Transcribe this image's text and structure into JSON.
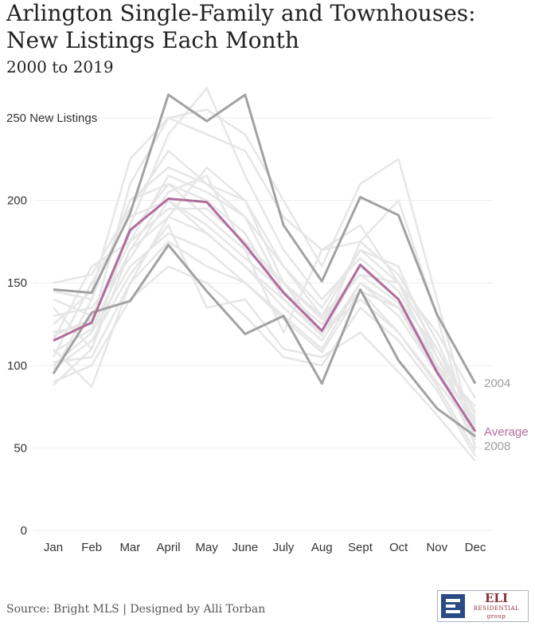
{
  "chart_data": {
    "type": "line",
    "title_line1": "Arlington Single-Family and Townhouses:",
    "title_line2": "New Listings Each Month",
    "subtitle": "2000 to 2019",
    "categories": [
      "Jan",
      "Feb",
      "Mar",
      "April",
      "May",
      "June",
      "July",
      "Aug",
      "Sept",
      "Oct",
      "Nov",
      "Dec"
    ],
    "y_ticks": [
      0,
      50,
      100,
      150,
      200,
      250
    ],
    "y_top_label": "250 New Listings",
    "ylim": [
      0,
      250
    ],
    "grid": true,
    "background_series": [
      [
        150,
        155,
        195,
        230,
        210,
        200,
        150,
        120,
        145,
        135,
        100,
        75
      ],
      [
        140,
        130,
        180,
        210,
        200,
        180,
        140,
        118,
        160,
        140,
        110,
        70
      ],
      [
        120,
        125,
        210,
        250,
        240,
        230,
        190,
        170,
        185,
        150,
        120,
        80
      ],
      [
        135,
        110,
        170,
        190,
        220,
        200,
        160,
        130,
        170,
        160,
        105,
        72
      ],
      [
        100,
        120,
        160,
        180,
        170,
        150,
        130,
        110,
        150,
        130,
        95,
        68
      ],
      [
        110,
        87,
        150,
        190,
        180,
        160,
        140,
        120,
        140,
        120,
        90,
        60
      ],
      [
        95,
        140,
        200,
        210,
        190,
        170,
        150,
        130,
        155,
        150,
        100,
        65
      ],
      [
        88,
        110,
        185,
        240,
        268,
        215,
        170,
        140,
        165,
        145,
        105,
        62
      ],
      [
        105,
        150,
        190,
        200,
        180,
        160,
        135,
        115,
        150,
        135,
        95,
        58
      ],
      [
        125,
        145,
        225,
        250,
        255,
        240,
        200,
        160,
        210,
        225,
        140,
        55
      ],
      [
        115,
        160,
        175,
        215,
        205,
        190,
        145,
        120,
        175,
        200,
        130,
        50
      ],
      [
        90,
        100,
        140,
        160,
        150,
        130,
        105,
        100,
        135,
        115,
        85,
        45
      ],
      [
        130,
        135,
        165,
        200,
        185,
        165,
        145,
        125,
        160,
        140,
        100,
        52
      ],
      [
        102,
        105,
        150,
        175,
        160,
        150,
        128,
        108,
        145,
        120,
        88,
        48
      ],
      [
        145,
        140,
        200,
        220,
        210,
        190,
        160,
        135,
        170,
        150,
        110,
        66
      ],
      [
        118,
        128,
        175,
        195,
        195,
        175,
        150,
        128,
        155,
        138,
        98,
        56
      ],
      [
        98,
        115,
        155,
        185,
        135,
        140,
        110,
        105,
        120,
        96,
        70,
        42
      ],
      [
        108,
        122,
        170,
        205,
        215,
        170,
        120,
        170,
        175,
        155,
        115,
        64
      ]
    ],
    "highlight_series": [
      {
        "name": "2004",
        "values": [
          146,
          144,
          192,
          264,
          248,
          264,
          185,
          151,
          202,
          191,
          131,
          89
        ],
        "color": "#a2a2a2"
      },
      {
        "name": "2008",
        "values": [
          95,
          132,
          139,
          173,
          145,
          119,
          130,
          89,
          146,
          103,
          74,
          57
        ],
        "color": "#a2a2a2"
      },
      {
        "name": "Average",
        "values": [
          115,
          126,
          182,
          201,
          199,
          173,
          144,
          121,
          161,
          140,
          96,
          60
        ],
        "color": "#b06d9c"
      }
    ],
    "series_label_colors": {
      "2004": "#9e9e9e",
      "2008": "#9e9e9e",
      "Average": "#b06d9c"
    },
    "background_color": "#e6e6e6",
    "grid_color": "#eeeeee"
  },
  "footer": {
    "source": "Source: Bright MLS | Designed by Alli Torban",
    "logo_big": "ELI",
    "logo_small1": "RESIDENTIAL",
    "logo_small2": "group"
  }
}
